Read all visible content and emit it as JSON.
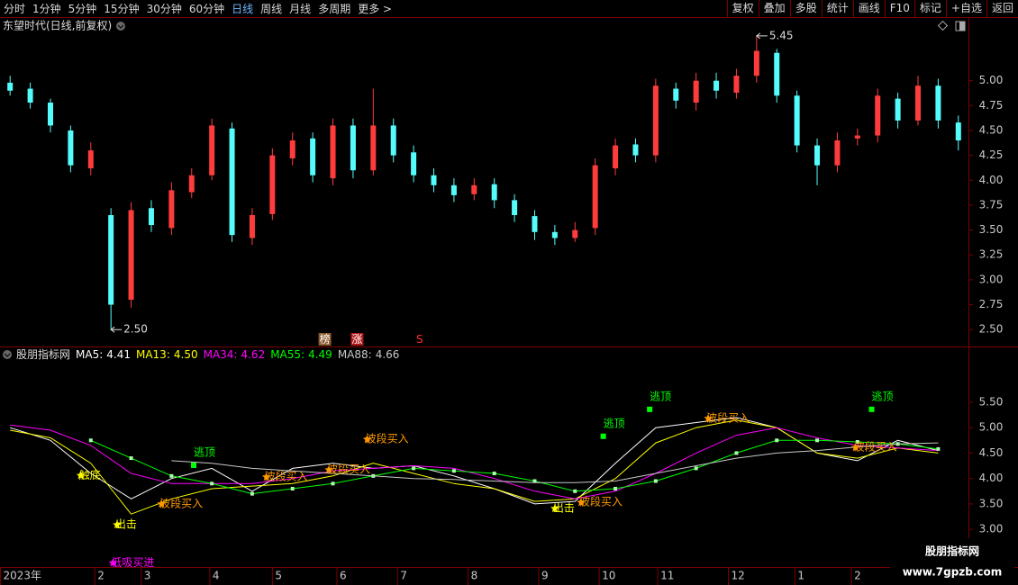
{
  "toolbar": {
    "periods": [
      "分时",
      "1分钟",
      "5分钟",
      "15分钟",
      "30分钟",
      "60分钟",
      "日线",
      "周线",
      "月线",
      "多周期",
      "更多 >"
    ],
    "active_index": 6,
    "tools": [
      "复权",
      "叠加",
      "多股",
      "统计",
      "画线",
      "F10",
      "标记",
      "+自选",
      "返回"
    ]
  },
  "watermark": {
    "title": "股朋指标网",
    "url": "www.7gpzb.com"
  },
  "chart_data": [
    {
      "type": "candlestick",
      "title": "东望时代(日线,前复权)",
      "open": [
        4.98,
        4.92,
        4.78,
        4.5,
        4.12,
        3.65,
        2.8,
        3.72,
        3.52,
        3.88,
        4.05,
        4.52,
        3.42,
        3.66,
        4.22,
        4.42,
        4.02,
        4.55,
        4.1,
        4.55,
        4.28,
        4.05,
        3.95,
        3.86,
        3.96,
        3.8,
        3.64,
        3.48,
        3.42,
        3.52,
        4.12,
        4.36,
        4.25,
        4.92,
        4.78,
        5.0,
        4.88,
        5.05,
        5.28,
        4.85,
        4.35,
        4.15,
        4.42,
        4.45,
        4.82,
        4.6,
        4.95,
        4.58
      ],
      "high": [
        5.05,
        4.98,
        4.82,
        4.55,
        4.38,
        3.72,
        3.78,
        3.8,
        3.98,
        4.12,
        4.62,
        4.58,
        3.72,
        4.32,
        4.48,
        4.48,
        4.62,
        4.62,
        4.92,
        4.62,
        4.35,
        4.12,
        4.02,
        4.02,
        4.02,
        3.86,
        3.7,
        3.55,
        3.58,
        4.22,
        4.42,
        4.42,
        5.02,
        4.98,
        5.08,
        5.08,
        5.12,
        5.45,
        5.32,
        4.9,
        4.42,
        4.48,
        4.52,
        4.92,
        4.88,
        5.05,
        5.02,
        4.65
      ],
      "low": [
        4.85,
        4.72,
        4.48,
        4.08,
        4.05,
        2.5,
        2.72,
        3.48,
        3.45,
        3.82,
        4.0,
        3.38,
        3.35,
        3.6,
        4.15,
        3.98,
        3.95,
        4.02,
        4.05,
        4.18,
        3.98,
        3.88,
        3.78,
        3.8,
        3.72,
        3.58,
        3.4,
        3.35,
        3.38,
        3.45,
        4.05,
        4.18,
        4.18,
        4.72,
        4.7,
        4.82,
        4.82,
        4.98,
        4.78,
        4.28,
        3.95,
        4.08,
        4.35,
        4.38,
        4.52,
        4.55,
        4.52,
        4.3
      ],
      "close": [
        4.9,
        4.78,
        4.55,
        4.15,
        4.3,
        2.75,
        3.7,
        3.55,
        3.9,
        4.05,
        4.55,
        3.45,
        3.65,
        4.25,
        4.4,
        4.05,
        4.55,
        4.1,
        4.55,
        4.25,
        4.05,
        3.95,
        3.85,
        3.95,
        3.8,
        3.65,
        3.48,
        3.42,
        3.5,
        4.15,
        4.35,
        4.25,
        4.95,
        4.8,
        5.0,
        4.9,
        5.05,
        5.3,
        4.85,
        4.35,
        4.15,
        4.4,
        4.45,
        4.85,
        4.6,
        4.95,
        4.6,
        4.4
      ],
      "up_color": "#ff3c3c",
      "down_color": "#54fcfc",
      "ylim": [
        2.33,
        5.63
      ],
      "yticks": [
        {
          "value": 2.5,
          "label": "2.50"
        },
        {
          "value": 2.75,
          "label": "2.75"
        },
        {
          "value": 3,
          "label": "3.00"
        },
        {
          "value": 3.25,
          "label": "3.25"
        },
        {
          "value": 3.5,
          "label": "3.50"
        },
        {
          "value": 3.75,
          "label": "3.75"
        },
        {
          "value": 4,
          "label": "4.00"
        },
        {
          "value": 4.25,
          "label": "4.25"
        },
        {
          "value": 4.5,
          "label": "4.50"
        },
        {
          "value": 4.75,
          "label": "4.75"
        },
        {
          "value": 5,
          "label": "5.00"
        }
      ],
      "extremes": [
        {
          "x": 37,
          "value": 5.45,
          "label": "5.45"
        },
        {
          "x": 5,
          "value": 2.5,
          "label": "2.50"
        }
      ],
      "flags": [
        {
          "x": 15.6,
          "label": "榜",
          "color": "#8a5a2a"
        },
        {
          "x": 17.2,
          "label": "涨",
          "color": "#b01818"
        },
        {
          "x": 20.3,
          "label": "S",
          "color": "#000000"
        }
      ]
    },
    {
      "type": "line",
      "title": "股朋指标网",
      "legend_separator": ":",
      "x": [
        0,
        2,
        4,
        6,
        8,
        10,
        12,
        14,
        16,
        18,
        20,
        22,
        24,
        26,
        28,
        30,
        32,
        34,
        36,
        38,
        40,
        42,
        44,
        46
      ],
      "xlim": [
        -0.5,
        47.5
      ],
      "ylim": [
        2.26,
        6.33
      ],
      "yticks": [
        {
          "value": 3,
          "label": "3.00"
        },
        {
          "value": 3.5,
          "label": "3.50"
        },
        {
          "value": 4,
          "label": "4.00"
        },
        {
          "value": 4.5,
          "label": "4.50"
        },
        {
          "value": 5,
          "label": "5.00"
        },
        {
          "value": 5.5,
          "label": "5.50"
        }
      ],
      "xticks": [
        {
          "value": -0.5,
          "label": "2023年"
        },
        {
          "value": 4.2,
          "label": "2"
        },
        {
          "value": 6.5,
          "label": "3"
        },
        {
          "value": 9.9,
          "label": "4"
        },
        {
          "value": 13,
          "label": "5"
        },
        {
          "value": 16.2,
          "label": "6"
        },
        {
          "value": 19.2,
          "label": "7"
        },
        {
          "value": 22.7,
          "label": "8"
        },
        {
          "value": 26.2,
          "label": "9"
        },
        {
          "value": 29.2,
          "label": "10"
        },
        {
          "value": 32.1,
          "label": "11"
        },
        {
          "value": 35.6,
          "label": "12"
        },
        {
          "value": 38.9,
          "label": "1"
        },
        {
          "value": 41.7,
          "label": "2"
        }
      ],
      "series": [
        {
          "name": "MA5",
          "color": "#ffffff",
          "current": {
            "value": 4.41,
            "label": "4.41"
          },
          "markers": false,
          "values": [
            5.0,
            4.75,
            4.1,
            3.6,
            4.0,
            4.2,
            3.75,
            4.2,
            4.3,
            4.2,
            4.25,
            4.05,
            3.8,
            3.5,
            3.55,
            4.3,
            5.0,
            5.1,
            5.2,
            5.0,
            4.5,
            4.35,
            4.75,
            4.55
          ]
        },
        {
          "name": "MA13",
          "color": "#ffff00",
          "current": {
            "value": 4.5,
            "label": "4.50"
          },
          "markers": false,
          "values": [
            4.95,
            4.8,
            4.3,
            3.3,
            3.6,
            3.8,
            3.85,
            3.9,
            4.05,
            4.3,
            4.1,
            3.9,
            3.8,
            3.55,
            3.6,
            4.0,
            4.7,
            5.0,
            5.15,
            5.0,
            4.5,
            4.4,
            4.6,
            4.5
          ]
        },
        {
          "name": "MA34",
          "color": "#ff00ff",
          "current": {
            "value": 4.62,
            "label": "4.62"
          },
          "markers": false,
          "values": [
            5.05,
            4.95,
            4.65,
            4.1,
            3.9,
            3.9,
            3.9,
            4.0,
            4.15,
            4.2,
            4.25,
            4.2,
            4.0,
            3.75,
            3.6,
            3.75,
            4.1,
            4.5,
            4.85,
            5.0,
            4.8,
            4.65,
            4.6,
            4.55
          ]
        },
        {
          "name": "MA55",
          "color": "#00ff00",
          "current": {
            "value": 4.49,
            "label": "4.49"
          },
          "markers": true,
          "values": [
            null,
            null,
            4.75,
            4.4,
            4.05,
            3.9,
            3.7,
            3.8,
            3.9,
            4.05,
            4.2,
            4.15,
            4.1,
            3.95,
            3.75,
            3.8,
            3.95,
            4.2,
            4.5,
            4.75,
            4.75,
            4.72,
            4.68,
            4.58
          ]
        },
        {
          "name": "MA88",
          "color": "#c8c8c8",
          "current": {
            "value": 4.66,
            "label": "4.66"
          },
          "markers": false,
          "values": [
            null,
            null,
            null,
            null,
            4.35,
            4.3,
            4.2,
            4.15,
            4.1,
            4.05,
            4.0,
            3.98,
            3.95,
            3.92,
            3.92,
            3.95,
            4.1,
            4.25,
            4.4,
            4.5,
            4.55,
            4.62,
            4.68,
            4.7
          ]
        }
      ],
      "signals": [
        {
          "label": "触底",
          "x": 3.5,
          "value": 4.06,
          "color": "#ffff00",
          "shape": "star"
        },
        {
          "label": "出击",
          "x": 5.3,
          "value": 3.09,
          "color": "#ffff00",
          "shape": "star"
        },
        {
          "label": "低吸买进",
          "x": 5.1,
          "value": 2.34,
          "color": "#ff00ff",
          "shape": "star"
        },
        {
          "label": "逃顶",
          "x": 9.1,
          "value": 4.26,
          "color": "#00ff00",
          "shape": "square"
        },
        {
          "label": "波段买入",
          "x": 7.5,
          "value": 3.5,
          "color": "#ff9900",
          "shape": "star"
        },
        {
          "label": "波段买入",
          "x": 12.7,
          "value": 4.03,
          "color": "#ff9900",
          "shape": "star"
        },
        {
          "label": "波段买入",
          "x": 15.8,
          "value": 4.17,
          "color": "#ff9900",
          "shape": "star"
        },
        {
          "label": "波段买入",
          "x": 17.7,
          "value": 4.77,
          "color": "#ff9900",
          "shape": "star"
        },
        {
          "label": "出击",
          "x": 27,
          "value": 3.41,
          "color": "#ffff00",
          "shape": "star"
        },
        {
          "label": "波段买入",
          "x": 28.3,
          "value": 3.53,
          "color": "#ff9900",
          "shape": "star"
        },
        {
          "label": "逃顶",
          "x": 29.4,
          "value": 4.83,
          "color": "#00ff00",
          "shape": "square"
        },
        {
          "label": "逃顶",
          "x": 31.7,
          "value": 5.36,
          "color": "#00ff00",
          "shape": "square"
        },
        {
          "label": "波段买入",
          "x": 34.6,
          "value": 5.18,
          "color": "#ff9900",
          "shape": "star"
        },
        {
          "label": "逃顶",
          "x": 42.7,
          "value": 5.36,
          "color": "#00ff00",
          "shape": "square"
        },
        {
          "label": "波段买入",
          "x": 41.9,
          "value": 4.61,
          "color": "#ff9900",
          "shape": "star"
        }
      ]
    }
  ]
}
